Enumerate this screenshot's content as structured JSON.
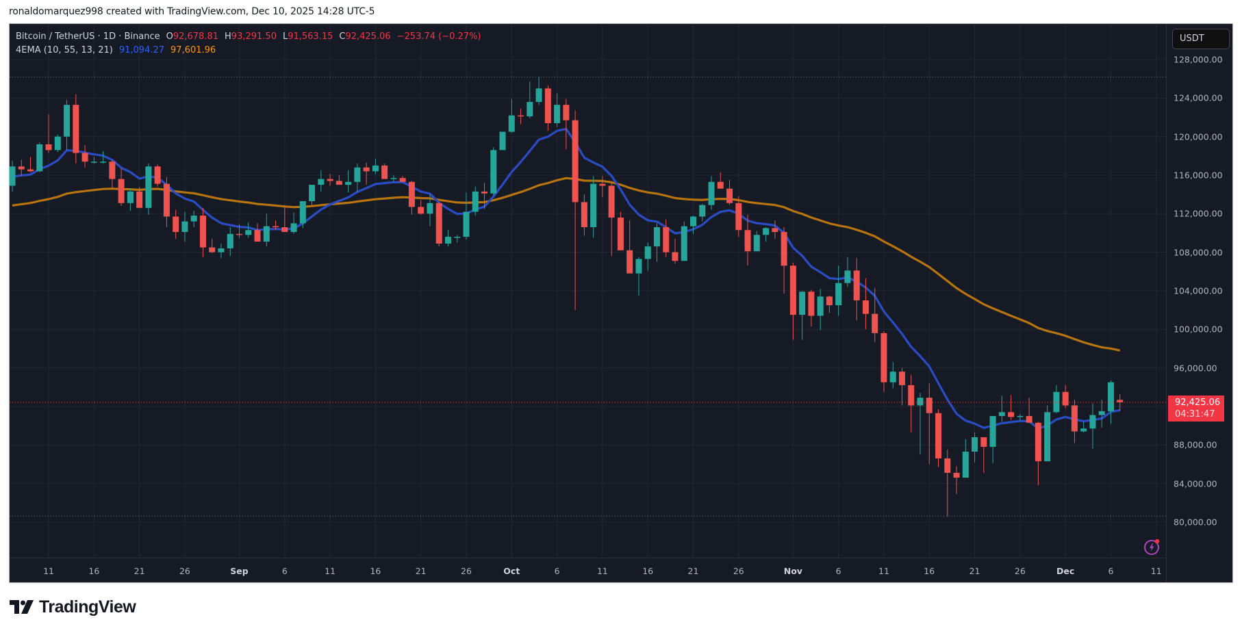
{
  "credit": "ronaldomarquez998 created with TradingView.com, Dec 10, 2025 14:28 UTC-5",
  "legend": {
    "symbol": "Bitcoin / TetherUS · 1D · Binance",
    "open_label": "O",
    "open": "92,678.81",
    "high_label": "H",
    "high": "93,291.50",
    "low_label": "L",
    "low": "91,563.15",
    "close_label": "C",
    "close": "92,425.06",
    "change": "−253.74 (−0.27%)",
    "indicator": "4EMA (10, 55, 13, 21)",
    "ema_fast": "91,094.27",
    "ema_slow": "97,601.96"
  },
  "price_axis": {
    "currency": "USDT",
    "ticks": [
      "128,000.00",
      "124,000.00",
      "120,000.00",
      "116,000.00",
      "112,000.00",
      "108,000.00",
      "104,000.00",
      "100,000.00",
      "96,000.00",
      "88,000.00",
      "84,000.00",
      "80,000.00"
    ],
    "last_price": "92,425.06",
    "countdown": "04:31:47"
  },
  "time_axis": {
    "ticks": [
      {
        "label": "11",
        "day": 4
      },
      {
        "label": "16",
        "day": 9
      },
      {
        "label": "21",
        "day": 14
      },
      {
        "label": "26",
        "day": 19
      },
      {
        "label": "Sep",
        "day": 25,
        "month": true
      },
      {
        "label": "6",
        "day": 30
      },
      {
        "label": "11",
        "day": 35
      },
      {
        "label": "16",
        "day": 40
      },
      {
        "label": "21",
        "day": 45
      },
      {
        "label": "26",
        "day": 50
      },
      {
        "label": "Oct",
        "day": 55,
        "month": true
      },
      {
        "label": "6",
        "day": 60
      },
      {
        "label": "11",
        "day": 65
      },
      {
        "label": "16",
        "day": 70
      },
      {
        "label": "21",
        "day": 75
      },
      {
        "label": "26",
        "day": 80
      },
      {
        "label": "Nov",
        "day": 86,
        "month": true
      },
      {
        "label": "6",
        "day": 91
      },
      {
        "label": "11",
        "day": 96
      },
      {
        "label": "16",
        "day": 101
      },
      {
        "label": "21",
        "day": 106
      },
      {
        "label": "26",
        "day": 111
      },
      {
        "label": "Dec",
        "day": 116,
        "month": true
      },
      {
        "label": "6",
        "day": 121
      },
      {
        "label": "11",
        "day": 126
      }
    ]
  },
  "brand": "TradingView",
  "colors": {
    "up": "#26a69a",
    "down": "#ef5350",
    "ema_fast": "#2a4cc4",
    "ema_slow": "#b8740f",
    "background": "#161a25",
    "grid": "#232733"
  },
  "chart_data": {
    "type": "candlestick",
    "title": "Bitcoin / TetherUS · 1D · Binance",
    "ylabel": "USDT",
    "ylim": [
      77500,
      131000
    ],
    "grid": true,
    "x_start": "Aug 7, 2025",
    "x_end": "Dec 10, 2025",
    "max_line": 126200,
    "min_line": 80600,
    "ohlc_thousands": [
      [
        114.9,
        117.5,
        114.3,
        116.9
      ],
      [
        116.9,
        117.6,
        115.9,
        116.6
      ],
      [
        116.6,
        117.9,
        116.3,
        116.4
      ],
      [
        116.4,
        119.4,
        116.3,
        119.2
      ],
      [
        119.2,
        122.3,
        118.3,
        118.6
      ],
      [
        118.6,
        120.2,
        118.4,
        120.0
      ],
      [
        120.0,
        123.8,
        118.6,
        123.3
      ],
      [
        123.3,
        124.4,
        117.2,
        118.3
      ],
      [
        118.3,
        119.1,
        116.8,
        117.4
      ],
      [
        117.4,
        117.9,
        117.2,
        117.4
      ],
      [
        117.4,
        118.5,
        117.2,
        117.4
      ],
      [
        117.4,
        117.6,
        114.7,
        115.6
      ],
      [
        115.6,
        116.7,
        112.8,
        113.1
      ],
      [
        113.1,
        114.6,
        112.3,
        114.3
      ],
      [
        114.3,
        114.8,
        112.6,
        112.6
      ],
      [
        112.6,
        117.2,
        111.9,
        116.9
      ],
      [
        116.9,
        117.1,
        114.8,
        115.1
      ],
      [
        115.1,
        115.8,
        110.6,
        111.7
      ],
      [
        111.7,
        112.4,
        109.4,
        110.1
      ],
      [
        110.1,
        112.2,
        109.1,
        111.2
      ],
      [
        111.2,
        112.3,
        110.6,
        111.8
      ],
      [
        111.8,
        112.6,
        107.5,
        108.5
      ],
      [
        108.5,
        109.4,
        107.9,
        108.0
      ],
      [
        108.0,
        108.9,
        107.4,
        108.4
      ],
      [
        108.4,
        110.6,
        107.6,
        109.9
      ],
      [
        109.9,
        110.9,
        109.5,
        109.8
      ],
      [
        109.8,
        111.1,
        109.5,
        110.3
      ],
      [
        110.3,
        111.0,
        109.1,
        109.1
      ],
      [
        109.1,
        112.0,
        108.6,
        110.7
      ],
      [
        110.7,
        111.3,
        110.3,
        110.6
      ],
      [
        110.6,
        112.9,
        110.3,
        110.1
      ],
      [
        110.1,
        112.1,
        109.9,
        111.0
      ],
      [
        111.0,
        113.2,
        110.5,
        113.3
      ],
      [
        113.3,
        114.5,
        112.8,
        115.0
      ],
      [
        115.0,
        116.5,
        114.3,
        115.6
      ],
      [
        115.6,
        116.1,
        114.9,
        115.4
      ],
      [
        115.4,
        116.0,
        115.1,
        115.0
      ],
      [
        115.0,
        116.5,
        114.2,
        115.3
      ],
      [
        115.3,
        117.2,
        114.2,
        116.8
      ],
      [
        116.8,
        117.3,
        115.0,
        116.4
      ],
      [
        116.4,
        117.7,
        116.1,
        117.0
      ],
      [
        117.0,
        117.2,
        115.6,
        115.6
      ],
      [
        115.6,
        116.0,
        115.3,
        115.7
      ],
      [
        115.7,
        115.9,
        115.3,
        115.3
      ],
      [
        115.3,
        115.4,
        111.9,
        112.7
      ],
      [
        112.7,
        113.4,
        111.9,
        112.0
      ],
      [
        112.0,
        114.0,
        110.7,
        113.1
      ],
      [
        113.1,
        113.2,
        108.6,
        108.9
      ],
      [
        108.9,
        110.3,
        108.6,
        109.6
      ],
      [
        109.6,
        109.8,
        109.0,
        109.6
      ],
      [
        109.6,
        114.2,
        109.3,
        112.2
      ],
      [
        112.2,
        114.8,
        111.8,
        114.3
      ],
      [
        114.3,
        115.2,
        112.5,
        114.1
      ],
      [
        114.1,
        118.9,
        113.9,
        118.6
      ],
      [
        118.6,
        120.0,
        118.6,
        120.5
      ],
      [
        120.5,
        123.9,
        120.4,
        122.2
      ],
      [
        122.2,
        122.9,
        121.3,
        122.1
      ],
      [
        122.1,
        125.7,
        121.9,
        123.6
      ],
      [
        123.6,
        126.2,
        123.3,
        125.0
      ],
      [
        125.0,
        125.3,
        120.6,
        121.4
      ],
      [
        121.4,
        124.5,
        121.0,
        123.3
      ],
      [
        123.3,
        123.9,
        118.7,
        121.7
      ],
      [
        121.7,
        122.7,
        102.0,
        113.2
      ],
      [
        113.2,
        114.0,
        109.7,
        110.6
      ],
      [
        110.6,
        115.9,
        109.5,
        115.1
      ],
      [
        115.1,
        115.9,
        113.7,
        114.9
      ],
      [
        114.9,
        115.3,
        107.6,
        111.6
      ],
      [
        111.6,
        112.2,
        109.9,
        108.2
      ],
      [
        108.2,
        111.3,
        106.1,
        105.8
      ],
      [
        105.8,
        107.5,
        103.5,
        107.3
      ],
      [
        107.3,
        109.0,
        106.1,
        108.6
      ],
      [
        108.6,
        111.0,
        107.0,
        110.6
      ],
      [
        110.6,
        111.4,
        107.5,
        108.0
      ],
      [
        108.0,
        109.4,
        106.8,
        107.1
      ],
      [
        107.1,
        111.2,
        107.1,
        110.7
      ],
      [
        110.7,
        111.8,
        109.9,
        111.7
      ],
      [
        111.7,
        113.0,
        111.2,
        112.9
      ],
      [
        112.9,
        115.9,
        112.4,
        115.3
      ],
      [
        115.3,
        116.3,
        114.8,
        114.6
      ],
      [
        114.6,
        115.5,
        112.9,
        113.1
      ],
      [
        113.1,
        113.8,
        109.6,
        110.3
      ],
      [
        110.3,
        111.9,
        106.6,
        108.1
      ],
      [
        108.1,
        110.2,
        108.1,
        109.8
      ],
      [
        109.8,
        110.6,
        109.1,
        110.5
      ],
      [
        110.5,
        111.3,
        109.4,
        110.1
      ],
      [
        110.1,
        110.6,
        103.7,
        106.6
      ],
      [
        106.6,
        106.9,
        98.9,
        101.5
      ],
      [
        101.5,
        104.0,
        98.9,
        103.9
      ],
      [
        103.9,
        104.1,
        100.3,
        101.4
      ],
      [
        101.4,
        104.2,
        99.9,
        103.4
      ],
      [
        103.4,
        103.5,
        101.7,
        102.5
      ],
      [
        102.5,
        106.6,
        101.4,
        104.8
      ],
      [
        104.8,
        107.5,
        104.4,
        106.1
      ],
      [
        106.1,
        107.4,
        100.9,
        103.0
      ],
      [
        103.0,
        105.3,
        100.0,
        101.6
      ],
      [
        101.6,
        104.3,
        98.7,
        99.6
      ],
      [
        99.6,
        99.8,
        93.5,
        94.5
      ],
      [
        94.5,
        96.6,
        93.9,
        95.6
      ],
      [
        95.6,
        96.0,
        92.1,
        94.2
      ],
      [
        94.2,
        95.3,
        89.3,
        92.1
      ],
      [
        92.1,
        93.4,
        87.0,
        92.9
      ],
      [
        92.9,
        94.4,
        86.0,
        91.3
      ],
      [
        91.3,
        91.7,
        85.7,
        86.6
      ],
      [
        86.6,
        87.5,
        80.6,
        85.1
      ],
      [
        85.1,
        85.8,
        82.9,
        84.6
      ],
      [
        84.6,
        88.6,
        84.6,
        87.3
      ],
      [
        87.3,
        89.3,
        86.2,
        88.8
      ],
      [
        88.8,
        88.7,
        85.1,
        87.8
      ],
      [
        87.8,
        90.1,
        86.1,
        91.0
      ],
      [
        91.0,
        93.1,
        90.4,
        91.4
      ],
      [
        91.4,
        93.2,
        90.6,
        90.9
      ],
      [
        90.9,
        91.2,
        90.5,
        91.0
      ],
      [
        91.0,
        92.9,
        90.9,
        90.3
      ],
      [
        90.3,
        90.4,
        83.8,
        86.3
      ],
      [
        86.3,
        92.1,
        86.3,
        91.4
      ],
      [
        91.4,
        94.2,
        91.3,
        93.5
      ],
      [
        93.5,
        94.2,
        91.8,
        92.1
      ],
      [
        92.1,
        92.7,
        88.2,
        89.4
      ],
      [
        89.4,
        90.4,
        89.3,
        89.7
      ],
      [
        89.7,
        92.3,
        87.6,
        91.1
      ],
      [
        91.1,
        92.7,
        89.8,
        91.5
      ],
      [
        91.5,
        94.7,
        90.2,
        94.5
      ],
      [
        92.68,
        93.29,
        91.56,
        92.43
      ]
    ],
    "ema_fast_seed": 115.6,
    "ema_slow_seed": 112.7,
    "series": [
      {
        "name": "EMA 10",
        "color": "#2a4cc4",
        "last": 91094.27
      },
      {
        "name": "EMA 55",
        "color": "#b8740f",
        "last": 97601.96
      }
    ]
  }
}
